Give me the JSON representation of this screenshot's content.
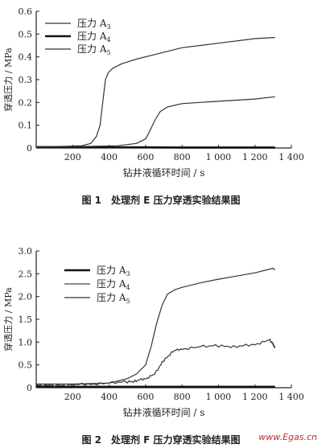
{
  "figures": [
    {
      "caption": "图 1　处理剂 E 压力穿透实验结果图"
    },
    {
      "caption": "图 2　处理剂 F 压力穿透实验结果图"
    }
  ],
  "watermark": "www.Egas.cn",
  "chart_data": [
    {
      "type": "line",
      "xlabel": "钻井液循环时间 / s",
      "ylabel": "穿透压力 / MPa",
      "xlim": [
        0,
        1400
      ],
      "ylim": [
        0,
        0.6
      ],
      "xticks": [
        "200",
        "400",
        "600",
        "800",
        "1 000",
        "1 200",
        "1 400"
      ],
      "xtick_values": [
        200,
        400,
        600,
        800,
        1000,
        1200,
        1400
      ],
      "yticks": [
        "0",
        "0.1",
        "0.2",
        "0.3",
        "0.4",
        "0.5",
        "0.6"
      ],
      "ytick_values": [
        0,
        0.1,
        0.2,
        0.3,
        0.4,
        0.5,
        0.6
      ],
      "grid": false,
      "legend_position": "top-left",
      "series": [
        {
          "name": "压力 A3",
          "base": "压力 A",
          "sub": "3",
          "style": "thin",
          "x": [
            0,
            150,
            250,
            300,
            330,
            350,
            365,
            380,
            395,
            420,
            470,
            550,
            650,
            800,
            1000,
            1200,
            1310
          ],
          "y": [
            0.005,
            0.007,
            0.01,
            0.02,
            0.05,
            0.1,
            0.2,
            0.3,
            0.33,
            0.35,
            0.37,
            0.39,
            0.41,
            0.44,
            0.46,
            0.48,
            0.485
          ]
        },
        {
          "name": "压力 A4",
          "base": "压力 A",
          "sub": "4",
          "style": "thick",
          "x": [
            0,
            200,
            400,
            600,
            800,
            1000,
            1200,
            1310
          ],
          "y": [
            0.004,
            0.004,
            0.003,
            0.003,
            0.002,
            0.002,
            0.002,
            0.002
          ]
        },
        {
          "name": "压力 A5",
          "base": "压力 A",
          "sub": "5",
          "style": "thin",
          "x": [
            0,
            300,
            450,
            550,
            600,
            620,
            650,
            680,
            720,
            800,
            900,
            1000,
            1100,
            1200,
            1310
          ],
          "y": [
            0.005,
            0.007,
            0.01,
            0.02,
            0.04,
            0.07,
            0.12,
            0.16,
            0.18,
            0.195,
            0.2,
            0.205,
            0.21,
            0.215,
            0.225
          ]
        }
      ]
    },
    {
      "type": "line",
      "xlabel": "钻井液循环时间 / s",
      "ylabel": "穿透压力 / MPa",
      "xlim": [
        0,
        1400
      ],
      "ylim": [
        0,
        3.0
      ],
      "xticks": [
        "200",
        "400",
        "600",
        "800",
        "1 000",
        "1 200",
        "1 400"
      ],
      "xtick_values": [
        200,
        400,
        600,
        800,
        1000,
        1200,
        1400
      ],
      "yticks": [
        "0",
        "0.5",
        "1.0",
        "1.5",
        "2.0",
        "2.5",
        "3.0"
      ],
      "ytick_values": [
        0,
        0.5,
        1.0,
        1.5,
        2.0,
        2.5,
        3.0
      ],
      "grid": false,
      "legend_position": "top-center",
      "series": [
        {
          "name": "压力 A3",
          "base": "压力 A",
          "sub": "3",
          "style": "thick",
          "x": [
            0,
            200,
            400,
            600,
            800,
            1000,
            1200,
            1310
          ],
          "y": [
            0.03,
            0.02,
            0.02,
            0.02,
            0.02,
            0.02,
            0.02,
            0.02
          ]
        },
        {
          "name": "压力 A4",
          "base": "压力 A",
          "sub": "4",
          "style": "noisy",
          "x": [
            0,
            100,
            200,
            300,
            400,
            500,
            550,
            600,
            650,
            700,
            750,
            800,
            900,
            1000,
            1100,
            1200,
            1280,
            1300,
            1310
          ],
          "y": [
            0.05,
            0.05,
            0.06,
            0.08,
            0.1,
            0.13,
            0.15,
            0.2,
            0.3,
            0.6,
            0.8,
            0.85,
            0.9,
            0.92,
            0.9,
            0.95,
            1.05,
            0.95,
            0.88
          ]
        },
        {
          "name": "压力 A5",
          "base": "压力 A",
          "sub": "5",
          "style": "thin",
          "x": [
            0,
            200,
            400,
            500,
            550,
            600,
            630,
            660,
            690,
            720,
            760,
            800,
            900,
            1000,
            1100,
            1200,
            1300,
            1310
          ],
          "y": [
            0.08,
            0.08,
            0.1,
            0.2,
            0.3,
            0.5,
            0.9,
            1.4,
            1.8,
            2.05,
            2.15,
            2.2,
            2.3,
            2.38,
            2.45,
            2.52,
            2.62,
            2.58
          ]
        }
      ]
    }
  ]
}
